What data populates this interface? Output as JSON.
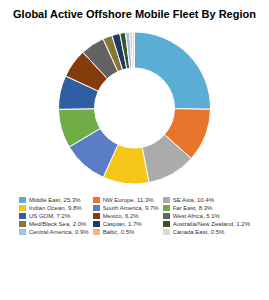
{
  "chart_data": {
    "type": "pie",
    "title": "Global Active Offshore Mobile Fleet By Region",
    "categories": [
      "Middle East, 25.3%",
      "NW Europe, 11.3%",
      "SE Asia, 10.4%",
      "Indian Ocean, 9.8%",
      "South America, 9.7%",
      "Far East, 8.3%",
      "US GOM, 7.2%",
      "Mexico, 6.2%",
      "West Africa, 5.1%",
      "Med/Black Sea, 2.0%",
      "Caspian, 1.7%",
      "Australia/New Zealand, 1.2%",
      "Central America, 0.9%",
      "Baltic, 0.5%",
      "Canada East, 0.5%"
    ],
    "values": [
      25.3,
      11.3,
      10.4,
      9.8,
      9.7,
      8.3,
      7.2,
      6.2,
      5.1,
      2.0,
      1.7,
      1.2,
      0.9,
      0.5,
      0.5
    ],
    "colors": [
      "#5BADD6",
      "#E8732A",
      "#ABABAB",
      "#F5C518",
      "#5B7DC8",
      "#70AD47",
      "#2E5FA3",
      "#843C0C",
      "#636363",
      "#8B7536",
      "#1F3864",
      "#375623",
      "#9DC3E6",
      "#F4B183",
      "#D9D9D9"
    ],
    "legend": "bottom"
  }
}
